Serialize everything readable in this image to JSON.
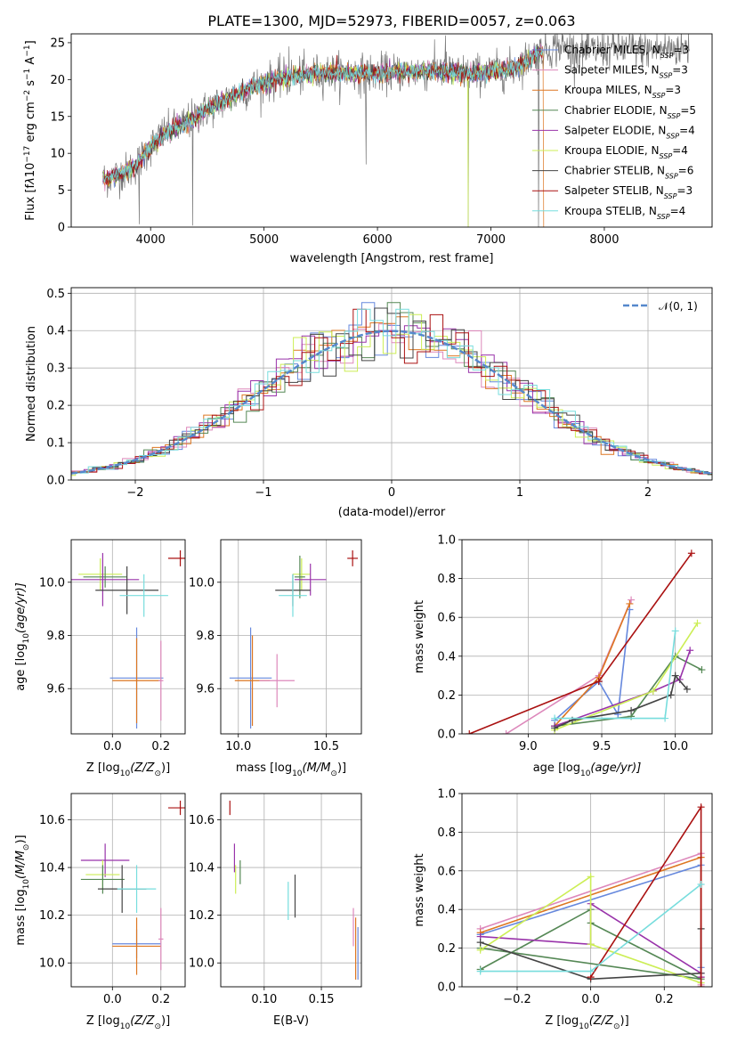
{
  "title": "PLATE=1300, MJD=52973, FIBERID=0057, z=0.063",
  "colors": {
    "chabrier_miles": "#6688dd",
    "salpeter_miles": "#dd88bb",
    "kroupa_miles": "#dd7722",
    "chabrier_elodie": "#558855",
    "salpeter_elodie": "#9933aa",
    "kroupa_elodie": "#ccee55",
    "chabrier_stelib": "#444444",
    "salpeter_stelib": "#aa1111",
    "kroupa_stelib": "#77dddd",
    "data": "#777777",
    "normal": "#5588cc"
  },
  "chart_data": [
    {
      "id": "spectrum",
      "type": "line",
      "xlabel": "wavelength [Angstrom, rest frame]",
      "ylabel_parts": [
        "Flux [f",
        "λ",
        "10",
        "−17",
        " erg cm",
        "−2",
        " s",
        "−1",
        " A",
        "−1",
        "]"
      ],
      "xlim": [
        3300,
        8950
      ],
      "ylim": [
        0,
        26.2
      ],
      "xticks": [
        4000,
        5000,
        6000,
        7000,
        8000
      ],
      "xticklabels": [
        "4000",
        "5000",
        "6000",
        "7000",
        "8000"
      ],
      "yticks": [
        0,
        5,
        10,
        15,
        20,
        25
      ],
      "yticklabels": [
        "0",
        "5",
        "10",
        "15",
        "20",
        "25"
      ],
      "grid": false,
      "legend_position": "right",
      "series": [
        {
          "name": "Chabrier MILES, N",
          "sub": "SSP",
          "n": "=3",
          "ckey": "chabrier_miles"
        },
        {
          "name": "Salpeter MILES, N",
          "sub": "SSP",
          "n": "=3",
          "ckey": "salpeter_miles"
        },
        {
          "name": "Kroupa MILES, N",
          "sub": "SSP",
          "n": "=3",
          "ckey": "kroupa_miles"
        },
        {
          "name": "Chabrier ELODIE, N",
          "sub": "SSP",
          "n": "=5",
          "ckey": "chabrier_elodie"
        },
        {
          "name": "Salpeter ELODIE, N",
          "sub": "SSP",
          "n": "=4",
          "ckey": "salpeter_elodie"
        },
        {
          "name": "Kroupa ELODIE, N",
          "sub": "SSP",
          "n": "=4",
          "ckey": "kroupa_elodie"
        },
        {
          "name": "Chabrier STELIB, N",
          "sub": "SSP",
          "n": "=6",
          "ckey": "chabrier_stelib"
        },
        {
          "name": "Salpeter STELIB, N",
          "sub": "SSP",
          "n": "=3",
          "ckey": "salpeter_stelib"
        },
        {
          "name": "Kroupa STELIB, N",
          "sub": "SSP",
          "n": "=4",
          "ckey": "kroupa_stelib"
        }
      ],
      "continuum": {
        "x": [
          3580,
          3700,
          3850,
          3950,
          4100,
          4300,
          4500,
          4700,
          4900,
          5100,
          5300,
          5600,
          5900,
          6200,
          6500,
          6800,
          7000,
          7200,
          7400,
          7600,
          7800,
          8100,
          8400,
          8700
        ],
        "y": [
          6.5,
          7.0,
          8.0,
          10.0,
          12.5,
          14.0,
          16.0,
          17.5,
          19.0,
          20.0,
          20.5,
          21.0,
          20.8,
          21.0,
          21.2,
          20.8,
          21.0,
          21.5,
          23.5,
          24.5,
          23.8,
          24.2,
          24.0,
          24.3
        ]
      },
      "wavelength_range": [
        3580,
        8750
      ],
      "model_range": [
        3580,
        7460
      ],
      "spikes": [
        {
          "x": 3900,
          "y": 0.4
        },
        {
          "x": 4370,
          "y": 0.2
        },
        {
          "x": 5220,
          "y": 24.5
        },
        {
          "x": 5900,
          "y": 8.5
        },
        {
          "x": 6600,
          "y": 26
        },
        {
          "x": 6800,
          "y": 0
        },
        {
          "x": 7420,
          "y": 0
        }
      ]
    },
    {
      "id": "residuals",
      "type": "step-histogram",
      "xlabel": "(data-model)/error",
      "ylabel": "Normed distribution",
      "xlim": [
        -2.5,
        2.5
      ],
      "ylim": [
        0,
        0.515
      ],
      "xticks": [
        -2,
        -1,
        0,
        1,
        2
      ],
      "xticklabels": [
        "−2",
        "−1",
        "0",
        "1",
        "2"
      ],
      "yticks": [
        0,
        0.1,
        0.2,
        0.3,
        0.4,
        0.5
      ],
      "yticklabels": [
        "0.0",
        "0.1",
        "0.2",
        "0.3",
        "0.4",
        "0.5"
      ],
      "grid": true,
      "bin_width": 0.1,
      "normal_label": "𝒩(0, 1)",
      "normal_mean": 0,
      "normal_sigma": 1
    },
    {
      "id": "age_vs_Z",
      "type": "errorbar",
      "xlabel_parts": [
        "Z [log",
        "10",
        "(Z/Z",
        "⊙",
        ")]"
      ],
      "ylabel_parts": [
        "age  [log",
        "10",
        "(age/yr)]"
      ],
      "xlim": [
        -0.17,
        0.3
      ],
      "ylim": [
        9.43,
        10.16
      ],
      "xticks": [
        0.0,
        0.2
      ],
      "xticklabels": [
        "0.0",
        "0.2"
      ],
      "yticks": [
        9.6,
        9.8,
        10.0
      ],
      "yticklabels": [
        "9.6",
        "9.8",
        "10.0"
      ],
      "grid": true,
      "points": [
        {
          "ckey": "salpeter_stelib",
          "x": 0.28,
          "y": 10.09,
          "xerr": 0.05,
          "yerr": 0.03
        },
        {
          "ckey": "kroupa_elodie",
          "x": -0.05,
          "y": 10.03,
          "xerr": 0.09,
          "yerr": 0.06
        },
        {
          "ckey": "chabrier_elodie",
          "x": -0.03,
          "y": 10.02,
          "xerr": 0.09,
          "yerr": 0.04
        },
        {
          "ckey": "salpeter_elodie",
          "x": -0.04,
          "y": 10.01,
          "xerr": 0.15,
          "yerr": 0.1
        },
        {
          "ckey": "chabrier_stelib",
          "x": 0.06,
          "y": 9.97,
          "xerr": 0.13,
          "yerr": 0.09
        },
        {
          "ckey": "kroupa_stelib",
          "x": 0.13,
          "y": 9.95,
          "xerr": 0.1,
          "yerr": 0.08
        },
        {
          "ckey": "chabrier_miles",
          "x": 0.1,
          "y": 9.64,
          "xerr": 0.11,
          "yerr": 0.19
        },
        {
          "ckey": "kroupa_miles",
          "x": 0.1,
          "y": 9.63,
          "xerr": 0.1,
          "yerr": 0.16
        },
        {
          "ckey": "salpeter_miles",
          "x": 0.2,
          "y": 9.63,
          "xerr": 0.01,
          "yerr": 0.15
        }
      ]
    },
    {
      "id": "age_vs_mass",
      "type": "errorbar",
      "xlabel_parts": [
        "mass [log",
        "10",
        "(M/M",
        "⊙",
        ")]"
      ],
      "ylabel_parts": [],
      "xlim": [
        9.9,
        10.7
      ],
      "ylim": [
        9.43,
        10.16
      ],
      "xticks": [
        10.0,
        10.5
      ],
      "xticklabels": [
        "10.0",
        "10.5"
      ],
      "yticks": [
        9.6,
        9.8,
        10.0
      ],
      "yticklabels": [
        "9.6",
        "9.8",
        "10.0"
      ],
      "grid": true,
      "points": [
        {
          "ckey": "salpeter_stelib",
          "x": 10.65,
          "y": 10.09,
          "xerr": 0.03,
          "yerr": 0.03
        },
        {
          "ckey": "kroupa_elodie",
          "x": 10.36,
          "y": 10.03,
          "xerr": 0.05,
          "yerr": 0.06
        },
        {
          "ckey": "chabrier_elodie",
          "x": 10.35,
          "y": 10.02,
          "xerr": 0.03,
          "yerr": 0.08
        },
        {
          "ckey": "salpeter_elodie",
          "x": 10.41,
          "y": 10.01,
          "xerr": 0.09,
          "yerr": 0.06
        },
        {
          "ckey": "chabrier_stelib",
          "x": 10.31,
          "y": 9.97,
          "xerr": 0.1,
          "yerr": 0.06
        },
        {
          "ckey": "kroupa_stelib",
          "x": 10.31,
          "y": 9.95,
          "xerr": 0.08,
          "yerr": 0.08
        },
        {
          "ckey": "chabrier_miles",
          "x": 10.07,
          "y": 9.64,
          "xerr": 0.12,
          "yerr": 0.19
        },
        {
          "ckey": "kroupa_miles",
          "x": 10.08,
          "y": 9.63,
          "xerr": 0.1,
          "yerr": 0.17
        },
        {
          "ckey": "salpeter_miles",
          "x": 10.22,
          "y": 9.63,
          "xerr": 0.1,
          "yerr": 0.1
        }
      ]
    },
    {
      "id": "massweight_vs_age",
      "type": "line",
      "xlabel_parts": [
        "age  [log",
        "10",
        "(age/yr)]"
      ],
      "ylabel": "mass weight",
      "xlim": [
        8.55,
        10.25
      ],
      "ylim": [
        0,
        1.0
      ],
      "xticks": [
        9.0,
        9.5,
        10.0
      ],
      "xticklabels": [
        "9.0",
        "9.5",
        "10.0"
      ],
      "yticks": [
        0,
        0.2,
        0.4,
        0.6,
        0.8,
        1.0
      ],
      "yticklabels": [
        "0.0",
        "0.2",
        "0.4",
        "0.6",
        "0.8",
        "1.0"
      ],
      "grid": true,
      "series": [
        {
          "ckey": "chabrier_miles",
          "x": [
            9.18,
            9.48,
            9.61,
            9.69
          ],
          "y": [
            0.07,
            0.27,
            0.1,
            0.64
          ]
        },
        {
          "ckey": "salpeter_miles",
          "x": [
            8.85,
            9.48,
            9.7
          ],
          "y": [
            0.0,
            0.3,
            0.69
          ]
        },
        {
          "ckey": "kroupa_miles",
          "x": [
            9.18,
            9.48,
            9.69
          ],
          "y": [
            0.04,
            0.29,
            0.67
          ]
        },
        {
          "ckey": "chabrier_elodie",
          "x": [
            9.18,
            9.7,
            10.0,
            10.18
          ],
          "y": [
            0.04,
            0.09,
            0.4,
            0.33
          ]
        },
        {
          "ckey": "salpeter_elodie",
          "x": [
            9.18,
            9.85,
            10.03,
            10.1
          ],
          "y": [
            0.04,
            0.22,
            0.28,
            0.43
          ]
        },
        {
          "ckey": "kroupa_elodie",
          "x": [
            9.18,
            9.85,
            10.15
          ],
          "y": [
            0.02,
            0.22,
            0.57
          ]
        },
        {
          "ckey": "chabrier_stelib",
          "x": [
            9.18,
            9.3,
            9.7,
            9.97,
            10.0,
            10.08
          ],
          "y": [
            0.03,
            0.07,
            0.12,
            0.2,
            0.3,
            0.23
          ]
        },
        {
          "ckey": "salpeter_stelib",
          "x": [
            8.6,
            9.48,
            10.11
          ],
          "y": [
            0.0,
            0.27,
            0.93
          ]
        },
        {
          "ckey": "kroupa_stelib",
          "x": [
            9.18,
            9.93,
            10.0
          ],
          "y": [
            0.08,
            0.08,
            0.53
          ]
        }
      ]
    },
    {
      "id": "mass_vs_Z",
      "type": "errorbar",
      "xlabel_parts": [
        "Z [log",
        "10",
        "(Z/Z",
        "⊙",
        ")]"
      ],
      "ylabel_parts": [
        "mass [log",
        "10",
        "(M/M",
        "⊙",
        ")]"
      ],
      "xlim": [
        -0.17,
        0.3
      ],
      "ylim": [
        9.9,
        10.71
      ],
      "xticks": [
        0.0,
        0.2
      ],
      "xticklabels": [
        "0.0",
        "0.2"
      ],
      "yticks": [
        10.0,
        10.2,
        10.4,
        10.6
      ],
      "yticklabels": [
        "10.0",
        "10.2",
        "10.4",
        "10.6"
      ],
      "grid": true,
      "points": [
        {
          "ckey": "salpeter_stelib",
          "x": 0.28,
          "y": 10.65,
          "xerr": 0.05,
          "yerr": 0.03
        },
        {
          "ckey": "salpeter_elodie",
          "x": -0.03,
          "y": 10.43,
          "xerr": 0.1,
          "yerr": 0.07
        },
        {
          "ckey": "kroupa_elodie",
          "x": -0.04,
          "y": 10.37,
          "xerr": 0.07,
          "yerr": 0.06
        },
        {
          "ckey": "chabrier_elodie",
          "x": -0.04,
          "y": 10.35,
          "xerr": 0.09,
          "yerr": 0.06
        },
        {
          "ckey": "chabrier_stelib",
          "x": 0.04,
          "y": 10.31,
          "xerr": 0.1,
          "yerr": 0.1
        },
        {
          "ckey": "kroupa_stelib",
          "x": 0.1,
          "y": 10.31,
          "xerr": 0.08,
          "yerr": 0.1
        },
        {
          "ckey": "chabrier_miles",
          "x": 0.1,
          "y": 10.08,
          "xerr": 0.1,
          "yerr": 0.06
        },
        {
          "ckey": "kroupa_miles",
          "x": 0.1,
          "y": 10.07,
          "xerr": 0.1,
          "yerr": 0.12
        },
        {
          "ckey": "salpeter_miles",
          "x": 0.2,
          "y": 10.1,
          "xerr": 0.01,
          "yerr": 0.13
        }
      ]
    },
    {
      "id": "mass_vs_EBV",
      "type": "errorbar",
      "xlabel": "E(B-V)",
      "ylabel_parts": [],
      "xlim": [
        0.062,
        0.185
      ],
      "ylim": [
        9.9,
        10.71
      ],
      "xticks": [
        0.1,
        0.15
      ],
      "xticklabels": [
        "0.10",
        "0.15"
      ],
      "yticks": [
        10.0,
        10.2,
        10.4,
        10.6
      ],
      "yticklabels": [
        "10.0",
        "10.2",
        "10.4",
        "10.6"
      ],
      "grid": true,
      "points": [
        {
          "ckey": "salpeter_stelib",
          "x": 0.07,
          "y": 10.65,
          "xerr": 0,
          "yerr": 0.03
        },
        {
          "ckey": "salpeter_elodie",
          "x": 0.074,
          "y": 10.44,
          "xerr": 0,
          "yerr": 0.06
        },
        {
          "ckey": "kroupa_elodie",
          "x": 0.075,
          "y": 10.35,
          "xerr": 0,
          "yerr": 0.06
        },
        {
          "ckey": "chabrier_elodie",
          "x": 0.079,
          "y": 10.38,
          "xerr": 0,
          "yerr": 0.05
        },
        {
          "ckey": "kroupa_stelib",
          "x": 0.121,
          "y": 10.26,
          "xerr": 0,
          "yerr": 0.08
        },
        {
          "ckey": "chabrier_stelib",
          "x": 0.127,
          "y": 10.28,
          "xerr": 0,
          "yerr": 0.09
        },
        {
          "ckey": "salpeter_miles",
          "x": 0.178,
          "y": 10.15,
          "xerr": 0,
          "yerr": 0.08
        },
        {
          "ckey": "kroupa_miles",
          "x": 0.18,
          "y": 10.06,
          "xerr": 0,
          "yerr": 0.13
        },
        {
          "ckey": "chabrier_miles",
          "x": 0.182,
          "y": 10.04,
          "xerr": 0,
          "yerr": 0.11
        }
      ]
    },
    {
      "id": "massweight_vs_Z",
      "type": "line",
      "xlabel_parts": [
        "Z [log",
        "10",
        "(Z/Z",
        "⊙",
        ")]"
      ],
      "ylabel": "mass weight",
      "xlim": [
        -0.35,
        0.33
      ],
      "ylim": [
        0,
        1.0
      ],
      "xticks": [
        -0.2,
        0.0,
        0.2
      ],
      "xticklabels": [
        "−0.2",
        "0.0",
        "0.2"
      ],
      "yticks": [
        0,
        0.2,
        0.4,
        0.6,
        0.8,
        1.0
      ],
      "yticklabels": [
        "0.0",
        "0.2",
        "0.4",
        "0.6",
        "0.8",
        "1.0"
      ],
      "grid": true,
      "series": [
        {
          "ckey": "chabrier_miles",
          "x": [
            -0.3,
            0.3,
            0.3
          ],
          "y": [
            0.27,
            0.63,
            0.1
          ]
        },
        {
          "ckey": "salpeter_miles",
          "x": [
            -0.3,
            0.3,
            0.3
          ],
          "y": [
            0.3,
            0.69,
            0.01
          ]
        },
        {
          "ckey": "kroupa_miles",
          "x": [
            -0.3,
            0.3,
            0.3
          ],
          "y": [
            0.28,
            0.67,
            0.05
          ]
        },
        {
          "ckey": "chabrier_elodie",
          "x": [
            -0.3,
            0.0,
            0.0,
            0.3,
            -0.3
          ],
          "y": [
            0.09,
            0.4,
            0.33,
            0.04,
            0.2
          ]
        },
        {
          "ckey": "salpeter_elodie",
          "x": [
            -0.3,
            0.0,
            0.0,
            0.3,
            0.3
          ],
          "y": [
            0.26,
            0.22,
            0.43,
            0.07,
            0.05
          ]
        },
        {
          "ckey": "kroupa_elodie",
          "x": [
            -0.3,
            0.0,
            0.0,
            0.3
          ],
          "y": [
            0.19,
            0.57,
            0.22,
            0.02
          ]
        },
        {
          "ckey": "chabrier_stelib",
          "x": [
            -0.3,
            0.0,
            0.3,
            0.3
          ],
          "y": [
            0.23,
            0.04,
            0.07,
            0.3
          ]
        },
        {
          "ckey": "salpeter_stelib",
          "x": [
            0.0,
            0.3,
            0.3
          ],
          "y": [
            0.05,
            0.93,
            0.0
          ]
        },
        {
          "ckey": "kroupa_stelib",
          "x": [
            -0.3,
            0.0,
            0.3
          ],
          "y": [
            0.08,
            0.08,
            0.53
          ]
        }
      ]
    }
  ]
}
